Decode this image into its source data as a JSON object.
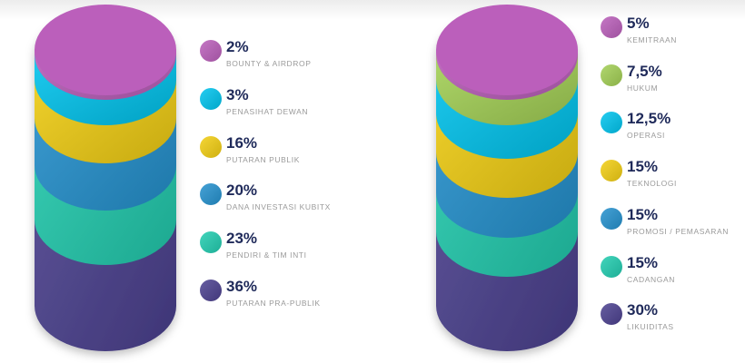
{
  "chart_data": [
    {
      "type": "stacked-cylinder",
      "unit": "%",
      "items": [
        {
          "value": "2%",
          "label": "BOUNTY & AIRDROP",
          "color": "#bb5fbb"
        },
        {
          "value": "3%",
          "label": "PENASIHAT DEWAN",
          "color": "#00c4ee"
        },
        {
          "value": "16%",
          "label": "PUTARAN PUBLIK",
          "color": "#f3cf13"
        },
        {
          "value": "20%",
          "label": "DANA INVESTASI KUBITX",
          "color": "#2592cf"
        },
        {
          "value": "23%",
          "label": "PENDIRI & TIM INTI",
          "color": "#22cdb0"
        },
        {
          "value": "36%",
          "label": "PUTARAN PRA-PUBLIK",
          "color": "#4c4190"
        }
      ]
    },
    {
      "type": "stacked-cylinder",
      "unit": "%",
      "items": [
        {
          "value": "5%",
          "label": "KEMITRAAN",
          "color": "#bb5fbb"
        },
        {
          "value": "7,5%",
          "label": "HUKUM",
          "color": "#a3d055"
        },
        {
          "value": "12,5%",
          "label": "OPERASI",
          "color": "#00c4ee"
        },
        {
          "value": "15%",
          "label": "TEKNOLOGI",
          "color": "#f3cf13"
        },
        {
          "value": "15%",
          "label": "PROMOSI / PEMASARAN",
          "color": "#2592cf"
        },
        {
          "value": "15%",
          "label": "CADANGAN",
          "color": "#22cdb0"
        },
        {
          "value": "30%",
          "label": "LIKUIDITAS",
          "color": "#4c4190"
        }
      ]
    }
  ]
}
